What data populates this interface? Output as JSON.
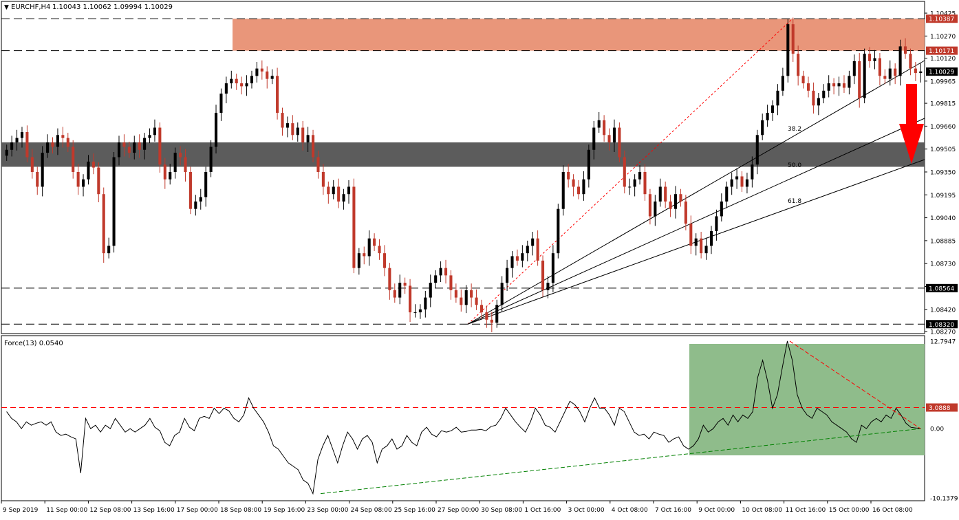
{
  "header": {
    "symbol_label": "EURCHF,H4",
    "ohlc_label": "1.10043 1.10062 1.09994 1.10029"
  },
  "colors": {
    "bull_candle": "#000000",
    "bear_candle": "#c0392b",
    "resistance_zone": "#e9967a",
    "support_zone": "#5c5c5c",
    "force_zone": "#8fbc8b",
    "red_arrow": "#ff0000",
    "price_box_red": "#c0392b",
    "price_box_black": "#000000",
    "indicator_line": "#000000",
    "up_trendline": "#008000",
    "down_trendline": "#ff0000"
  },
  "chart_data": [
    {
      "type": "candlestick",
      "title": "EURCHF,H4",
      "ylim": [
        1.0827,
        1.1043
      ],
      "y_ticks": [
        "1.10425",
        "1.10270",
        "1.10120",
        "1.09965",
        "1.09815",
        "1.09660",
        "1.09505",
        "1.09350",
        "1.09195",
        "1.09040",
        "1.08885",
        "1.08730",
        "1.08575",
        "1.08420",
        "1.08270"
      ],
      "x_ticks": [
        "9 Sep 2019",
        "11 Sep 00:00",
        "12 Sep 08:00",
        "13 Sep 16:00",
        "17 Sep 00:00",
        "18 Sep 08:00",
        "19 Sep 16:00",
        "23 Sep 00:00",
        "24 Sep 08:00",
        "25 Sep 16:00",
        "27 Sep 00:00",
        "30 Sep 08:00",
        "1 Oct 16:00",
        "3 Oct 00:00",
        "4 Oct 08:00",
        "7 Oct 16:00",
        "9 Oct 00:00",
        "10 Oct 08:00",
        "11 Oct 16:00",
        "15 Oct 00:00",
        "16 Oct 08:00"
      ],
      "price_levels": [
        {
          "value": 1.10387,
          "label": "1.10387",
          "box": "red"
        },
        {
          "value": 1.10171,
          "label": "1.10171",
          "box": "red"
        },
        {
          "value": 1.10029,
          "label": "1.10029",
          "box": "black"
        },
        {
          "value": 1.08564,
          "label": "1.08564",
          "box": "black"
        },
        {
          "value": 1.0832,
          "label": "1.08320",
          "box": "black"
        }
      ],
      "resistance_zone": [
        1.10171,
        1.10387
      ],
      "support_zone": [
        1.09385,
        1.0955
      ],
      "fib_fan_labels": [
        "38.2",
        "50.0",
        "61.8"
      ],
      "closes": [
        1.095,
        1.0955,
        1.0958,
        1.0962,
        1.0945,
        1.0935,
        1.0925,
        1.0948,
        1.0955,
        1.0952,
        1.096,
        1.0958,
        1.0952,
        1.0935,
        1.0925,
        1.093,
        1.0942,
        1.0938,
        1.092,
        1.088,
        1.0885,
        1.0945,
        1.0955,
        1.0952,
        1.0948,
        1.0955,
        1.095,
        1.0958,
        1.096,
        1.0965,
        1.094,
        1.093,
        1.0935,
        1.0948,
        1.0945,
        1.0935,
        1.091,
        1.0915,
        1.0918,
        1.0935,
        1.0952,
        1.0975,
        1.0988,
        1.0995,
        1.0998,
        1.0995,
        1.0993,
        1.0995,
        1.1,
        1.1005,
        1.1003,
        1.0998,
        1.1,
        1.0975,
        1.0965,
        1.0968,
        1.096,
        1.0965,
        1.0955,
        1.096,
        1.0945,
        1.0935,
        1.0925,
        1.092,
        1.0925,
        1.0915,
        1.092,
        1.0925,
        1.087,
        1.088,
        1.0878,
        1.089,
        1.0885,
        1.088,
        1.087,
        1.0855,
        1.085,
        1.086,
        1.0858,
        1.084,
        1.084,
        1.0842,
        1.085,
        1.086,
        1.0865,
        1.087,
        1.0865,
        1.0855,
        1.085,
        1.0845,
        1.0855,
        1.085,
        1.0845,
        1.084,
        1.0835,
        1.0833,
        1.0845,
        1.086,
        1.087,
        1.0878,
        1.0875,
        1.088,
        1.0885,
        1.089,
        1.0875,
        1.0855,
        1.086,
        1.088,
        1.091,
        1.0935,
        1.093,
        1.0925,
        1.092,
        1.093,
        1.095,
        1.0965,
        1.097,
        1.096,
        1.0955,
        1.0965,
        1.0945,
        1.0925,
        1.0925,
        1.093,
        1.0935,
        1.092,
        1.0905,
        1.0915,
        1.0925,
        1.0915,
        1.091,
        1.092,
        1.0915,
        1.09,
        1.0885,
        1.089,
        1.088,
        1.0885,
        1.0895,
        1.0905,
        1.0915,
        1.0925,
        1.093,
        1.0932,
        1.0925,
        1.093,
        1.094,
        1.096,
        1.097,
        1.0975,
        1.098,
        1.099,
        1.1,
        1.1035,
        1.1015,
        1.1,
        1.0995,
        1.099,
        1.098,
        1.0985,
        1.099,
        1.0995,
        1.0993,
        1.0995,
        1.0992,
        1.1,
        1.101,
        1.0985,
        1.1015,
        1.101,
        1.1012,
        1.1,
        1.0998,
        1.1005,
        1.1,
        1.102,
        1.1015,
        1.1005,
        1.1002,
        1.1003
      ]
    },
    {
      "type": "line",
      "title": "Force(13) 0.0540",
      "ylim": [
        -10.1379,
        12.7947
      ],
      "y_ticks": [
        "12.7947",
        "3.0888",
        "0.00",
        "-10.1379"
      ],
      "level_line": {
        "value": 3.0888,
        "label": "3.0888"
      },
      "values": [
        2.5,
        1.5,
        1.0,
        0.0,
        1.0,
        0.5,
        0.8,
        1.0,
        0.5,
        1.0,
        -0.5,
        -1.0,
        -0.8,
        -1.2,
        -1.5,
        -6.5,
        1.5,
        0.0,
        0.5,
        -0.5,
        0.5,
        0.0,
        1.5,
        0.5,
        -0.5,
        0.0,
        -0.5,
        0.0,
        0.5,
        1.5,
        0.2,
        -0.3,
        -2.0,
        -2.5,
        -1.0,
        -0.5,
        1.5,
        0.2,
        -0.3,
        1.5,
        1.8,
        1.5,
        3.0,
        2.2,
        3.0,
        2.6,
        1.5,
        1.0,
        2.0,
        4.5,
        3.0,
        2.0,
        1.0,
        -0.5,
        -2.5,
        -3.0,
        -4.0,
        -5.0,
        -5.5,
        -6.0,
        -7.5,
        -8.0,
        -9.5,
        -4.5,
        -2.5,
        -1.0,
        -3.0,
        -5.0,
        -2.5,
        -0.5,
        -1.5,
        -3.0,
        -1.5,
        -1.0,
        -2.0,
        -5.0,
        -3.0,
        -2.5,
        -1.5,
        -3.0,
        -2.5,
        -1.0,
        -2.0,
        -2.5,
        -0.5,
        0.2,
        -0.8,
        -1.2,
        -0.3,
        -0.5,
        -0.3,
        0.2,
        -0.5,
        -0.4,
        -0.2,
        -0.2,
        -0.1,
        -0.3,
        0.3,
        0.5,
        1.5,
        3.0,
        2.0,
        1.0,
        0.2,
        -0.5,
        1.0,
        3.0,
        2.0,
        0.5,
        0.2,
        -0.5,
        1.0,
        2.5,
        4.0,
        3.5,
        2.5,
        1.0,
        3.0,
        4.5,
        3.0,
        3.0,
        2.0,
        0.5,
        3.0,
        2.5,
        1.0,
        -0.5,
        -1.0,
        -0.8,
        -1.5,
        -0.5,
        -0.8,
        -1.0,
        -2.0,
        -1.5,
        -1.2,
        -2.5,
        -3.0,
        -2.5,
        -1.5,
        0.5,
        -0.5,
        0.0,
        1.0,
        1.5,
        0.5,
        2.0,
        1.0,
        2.0,
        1.5,
        2.5,
        7.5,
        10.0,
        7.0,
        3.0,
        5.0,
        9.0,
        12.8,
        10.0,
        5.0,
        3.0,
        2.0,
        1.5,
        3.0,
        2.5,
        2.0,
        1.0,
        0.5,
        0.0,
        -0.5,
        -1.5,
        -2.0,
        0.5,
        0.0,
        1.0,
        1.5,
        1.0,
        2.0,
        1.5,
        3.0,
        2.0,
        0.8,
        0.2,
        0.1,
        0.05
      ]
    }
  ]
}
